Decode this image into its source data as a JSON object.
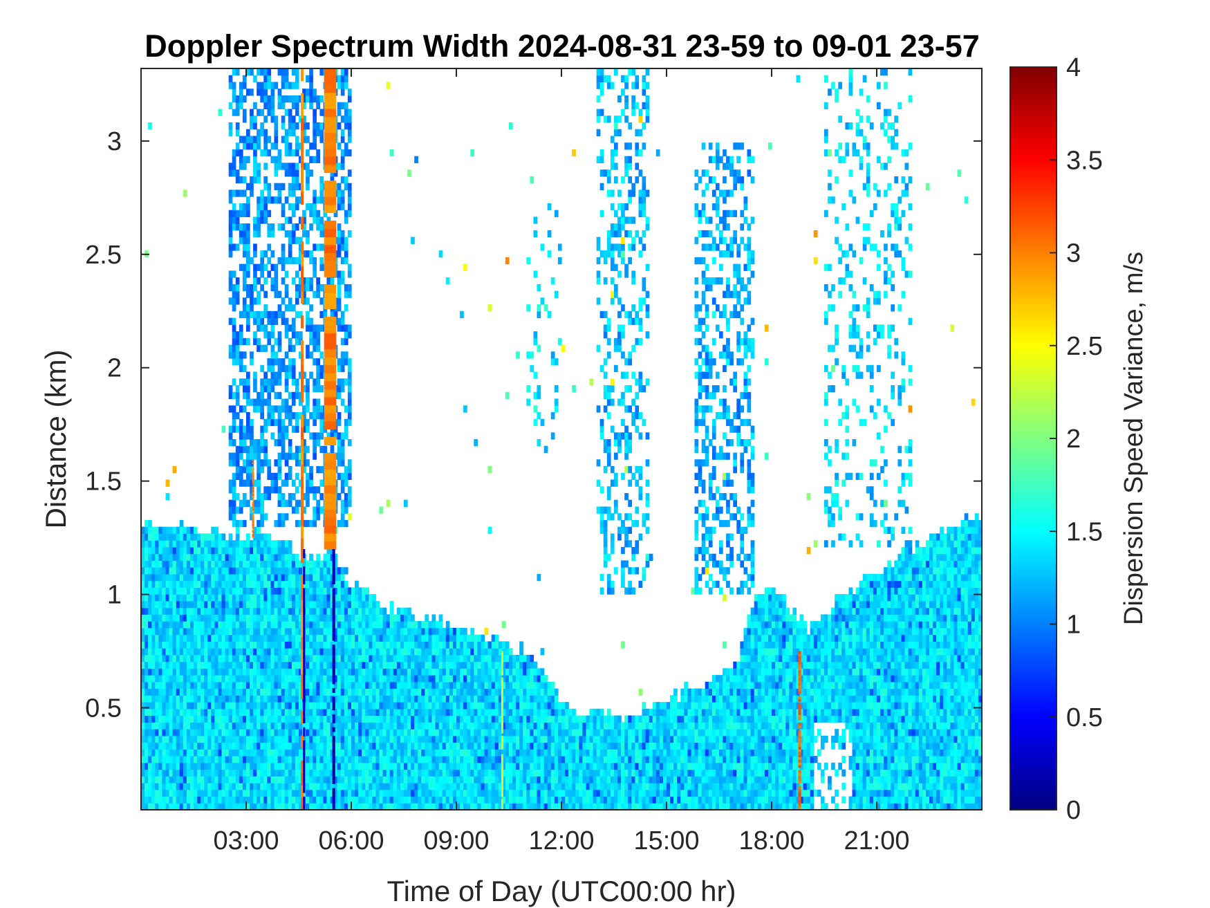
{
  "chart_data": {
    "type": "heatmap",
    "title": "Doppler Spectrum Width 2024-08-31 23-59 to 09-01 23-57",
    "xlabel": "Time of Day (UTC00:00 hr)",
    "ylabel": "Distance (km)",
    "colorbar_label": "Dispersion Speed Variance, m/s",
    "colormap": "jet",
    "x_unit": "hours",
    "xlim": [
      0,
      24
    ],
    "ylim": [
      0.05,
      3.32
    ],
    "clim": [
      0,
      4
    ],
    "x_ticks": [
      3,
      6,
      9,
      12,
      15,
      18,
      21
    ],
    "x_tick_labels": [
      "03:00",
      "06:00",
      "09:00",
      "12:00",
      "15:00",
      "18:00",
      "21:00"
    ],
    "y_ticks": [
      0.5,
      1,
      1.5,
      2,
      2.5,
      3
    ],
    "y_tick_labels": [
      "0.5",
      "1",
      "1.5",
      "2",
      "2.5",
      "3"
    ],
    "colorbar_ticks": [
      0,
      0.5,
      1,
      1.5,
      2,
      2.5,
      3,
      3.5,
      4
    ],
    "colorbar_tick_labels": [
      "0",
      "0.5",
      "1",
      "1.5",
      "2",
      "2.5",
      "3",
      "3.5",
      "4"
    ],
    "grid": false,
    "background_color": "#ffffff",
    "boundary_layer_top_km": {
      "x": [
        0,
        1.5,
        2.5,
        3,
        4,
        4.6,
        5.4,
        6,
        7,
        8,
        9,
        10,
        11,
        12,
        12.5,
        13,
        14,
        15,
        16,
        17,
        17.5,
        18,
        19,
        20,
        21,
        22,
        23,
        24
      ],
      "y": [
        1.3,
        1.3,
        1.25,
        1.28,
        1.25,
        1.15,
        1.2,
        1.05,
        0.95,
        0.9,
        0.85,
        0.8,
        0.75,
        0.55,
        0.45,
        0.5,
        0.45,
        0.55,
        0.6,
        0.7,
        1.0,
        1.05,
        0.85,
        1.0,
        1.1,
        1.2,
        1.3,
        1.35
      ]
    },
    "boundary_layer_value_m_s": 1.4,
    "upper_regions": [
      {
        "x_range": [
          2.5,
          6.0
        ],
        "y_range": [
          1.3,
          3.32
        ],
        "value_m_s": 1.1,
        "density": 0.55
      },
      {
        "x_range": [
          13.0,
          14.5
        ],
        "y_range": [
          1.0,
          3.32
        ],
        "value_m_s": 1.25,
        "density": 0.3
      },
      {
        "x_range": [
          15.8,
          17.5
        ],
        "y_range": [
          1.0,
          3.0
        ],
        "value_m_s": 1.2,
        "density": 0.4
      },
      {
        "x_range": [
          19.5,
          22.0
        ],
        "y_range": [
          1.2,
          3.32
        ],
        "value_m_s": 1.35,
        "density": 0.2
      },
      {
        "x_range": [
          11.0,
          12.0
        ],
        "y_range": [
          1.6,
          2.8
        ],
        "value_m_s": 1.4,
        "density": 0.1
      }
    ],
    "high_variance_streaks": [
      {
        "x": 4.6,
        "y_range": [
          0.05,
          3.32
        ],
        "value_m_s": 3.0,
        "width_h": 0.08
      },
      {
        "x": 5.4,
        "y_range": [
          1.2,
          3.32
        ],
        "value_m_s": 3.0,
        "width_h": 0.35
      },
      {
        "x": 3.2,
        "y_range": [
          1.25,
          1.6
        ],
        "value_m_s": 3.0,
        "width_h": 0.06
      },
      {
        "x": 18.8,
        "y_range": [
          0.05,
          0.75
        ],
        "value_m_s": 3.1,
        "width_h": 0.08
      },
      {
        "x": 10.3,
        "y_range": [
          0.05,
          0.75
        ],
        "value_m_s": 2.3,
        "width_h": 0.04
      }
    ],
    "low_variance_streaks": [
      {
        "x": 4.65,
        "y_range": [
          0.05,
          1.2
        ],
        "value_m_s": 0.3,
        "width_h": 0.05
      },
      {
        "x": 5.5,
        "y_range": [
          0.05,
          1.2
        ],
        "value_m_s": 0.2,
        "width_h": 0.08
      }
    ],
    "near_ground_gap": {
      "x_range": [
        19.2,
        20.3
      ],
      "y_range": [
        0.05,
        0.45
      ]
    }
  }
}
